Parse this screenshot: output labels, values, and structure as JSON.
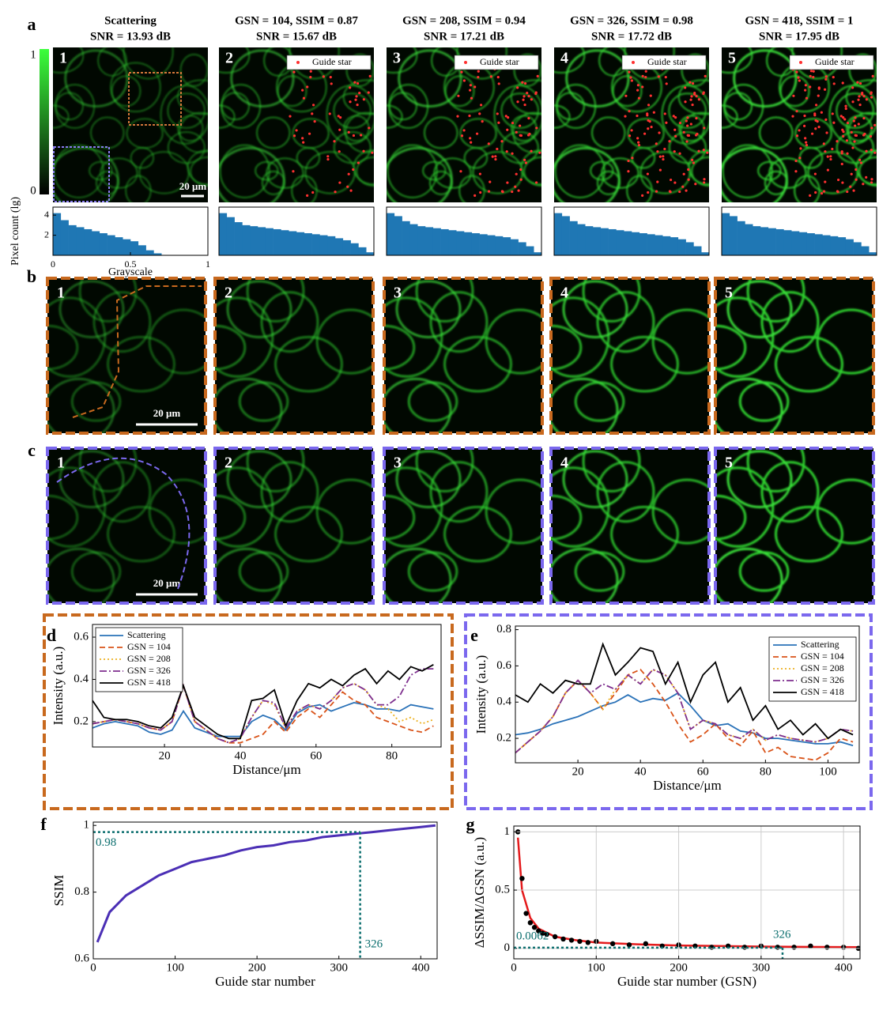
{
  "panel_labels": [
    "a",
    "b",
    "c",
    "d",
    "e",
    "f",
    "g"
  ],
  "panel_a": {
    "titles": [
      [
        "Scattering",
        "SNR = 13.93 dB"
      ],
      [
        "GSN = 104, SSIM = 0.87",
        "SNR = 15.67 dB"
      ],
      [
        "GSN = 208, SSIM = 0.94",
        "SNR = 17.21 dB"
      ],
      [
        "GSN = 326, SSIM = 0.98",
        "SNR = 17.72 dB"
      ],
      [
        "GSN = 418, SSIM = 1",
        "SNR = 17.95 dB"
      ]
    ],
    "image_numbers": [
      "1",
      "2",
      "3",
      "4",
      "5"
    ],
    "colorbar_ticks": [
      1,
      0
    ],
    "scale_bar": "20 μm",
    "legend": "Guide star"
  },
  "panel_b": {
    "image_numbers": [
      "1",
      "2",
      "3",
      "4",
      "5"
    ],
    "scale_bar": "20 μm"
  },
  "panel_c": {
    "image_numbers": [
      "1",
      "2",
      "3",
      "4",
      "5"
    ],
    "scale_bar": "20 μm"
  },
  "chart_data": [
    {
      "type": "histogram",
      "bins": [
        0,
        0.05,
        0.1,
        0.15,
        0.2,
        0.25,
        0.3,
        0.35,
        0.4,
        0.45,
        0.5,
        0.55,
        0.6,
        0.65,
        0.7,
        0.75,
        0.8,
        0.85,
        0.9,
        0.95,
        1
      ],
      "values": [
        4.2,
        3.5,
        3,
        2.8,
        2.6,
        2.4,
        2.2,
        2,
        1.8,
        1.6,
        1.4,
        1,
        0.5,
        0.2,
        0,
        0,
        0,
        0,
        0,
        0
      ],
      "color": "#1f77b4",
      "xlim": [
        0,
        1
      ],
      "ylim": [
        0,
        4.8
      ],
      "xticks": [
        0,
        0.5,
        1
      ],
      "yticks": [
        2,
        4
      ],
      "x_label": "Grayscale",
      "y_label": "Pixel count (lg)"
    },
    {
      "type": "histogram",
      "bins": [
        0,
        0.05,
        0.1,
        0.15,
        0.2,
        0.25,
        0.3,
        0.35,
        0.4,
        0.45,
        0.5,
        0.55,
        0.6,
        0.65,
        0.7,
        0.75,
        0.8,
        0.85,
        0.9,
        0.95,
        1
      ],
      "values": [
        4.2,
        3.8,
        3.3,
        3,
        2.9,
        2.8,
        2.7,
        2.6,
        2.5,
        2.4,
        2.3,
        2.2,
        2.1,
        2,
        1.9,
        1.7,
        1.5,
        1.2,
        0.8,
        0.3
      ],
      "color": "#1f77b4",
      "xlim": [
        0,
        1
      ],
      "ylim": [
        0,
        4.8
      ]
    },
    {
      "type": "histogram",
      "bins": [
        0,
        0.05,
        0.1,
        0.15,
        0.2,
        0.25,
        0.3,
        0.35,
        0.4,
        0.45,
        0.5,
        0.55,
        0.6,
        0.65,
        0.7,
        0.75,
        0.8,
        0.85,
        0.9,
        0.95,
        1
      ],
      "values": [
        4.2,
        3.9,
        3.4,
        3.1,
        2.9,
        2.8,
        2.7,
        2.6,
        2.5,
        2.4,
        2.3,
        2.2,
        2.1,
        2,
        1.9,
        1.8,
        1.6,
        1.3,
        0.9,
        0.3
      ],
      "color": "#1f77b4",
      "xlim": [
        0,
        1
      ],
      "ylim": [
        0,
        4.8
      ]
    },
    {
      "type": "histogram",
      "bins": [
        0,
        0.05,
        0.1,
        0.15,
        0.2,
        0.25,
        0.3,
        0.35,
        0.4,
        0.45,
        0.5,
        0.55,
        0.6,
        0.65,
        0.7,
        0.75,
        0.8,
        0.85,
        0.9,
        0.95,
        1
      ],
      "values": [
        4.2,
        3.9,
        3.4,
        3.1,
        2.9,
        2.8,
        2.7,
        2.6,
        2.5,
        2.4,
        2.3,
        2.2,
        2.1,
        2,
        1.9,
        1.8,
        1.6,
        1.3,
        0.9,
        0.3
      ],
      "color": "#1f77b4",
      "xlim": [
        0,
        1
      ],
      "ylim": [
        0,
        4.8
      ]
    },
    {
      "type": "histogram",
      "bins": [
        0,
        0.05,
        0.1,
        0.15,
        0.2,
        0.25,
        0.3,
        0.35,
        0.4,
        0.45,
        0.5,
        0.55,
        0.6,
        0.65,
        0.7,
        0.75,
        0.8,
        0.85,
        0.9,
        0.95,
        1
      ],
      "values": [
        4.2,
        3.9,
        3.4,
        3.1,
        2.9,
        2.8,
        2.7,
        2.6,
        2.5,
        2.4,
        2.3,
        2.2,
        2.1,
        2,
        1.9,
        1.8,
        1.6,
        1.3,
        0.9,
        0.3
      ],
      "color": "#1f77b4",
      "xlim": [
        0,
        1
      ],
      "ylim": [
        0,
        4.8
      ]
    },
    {
      "type": "line",
      "x": [
        1,
        4,
        7,
        10,
        13,
        16,
        19,
        22,
        25,
        28,
        31,
        34,
        37,
        40,
        43,
        46,
        49,
        52,
        55,
        58,
        61,
        64,
        67,
        70,
        73,
        76,
        79,
        82,
        85,
        88,
        91
      ],
      "series": [
        {
          "name": "Scattering",
          "color": "#2a72b8",
          "dash": "solid",
          "values": [
            0.17,
            0.19,
            0.2,
            0.19,
            0.18,
            0.15,
            0.14,
            0.16,
            0.25,
            0.17,
            0.15,
            0.13,
            0.13,
            0.13,
            0.2,
            0.23,
            0.21,
            0.16,
            0.24,
            0.27,
            0.28,
            0.25,
            0.27,
            0.29,
            0.28,
            0.26,
            0.26,
            0.25,
            0.28,
            0.27,
            0.26
          ]
        },
        {
          "name": "GSN = 104",
          "color": "#d95319",
          "dash": "dashed",
          "values": [
            0.19,
            0.2,
            0.21,
            0.2,
            0.19,
            0.17,
            0.16,
            0.2,
            0.37,
            0.2,
            0.16,
            0.12,
            0.1,
            0.1,
            0.12,
            0.14,
            0.2,
            0.15,
            0.22,
            0.26,
            0.22,
            0.28,
            0.34,
            0.3,
            0.28,
            0.22,
            0.2,
            0.18,
            0.16,
            0.15,
            0.18
          ]
        },
        {
          "name": "GSN = 208",
          "color": "#edb120",
          "dash": "dotted",
          "values": [
            0.19,
            0.2,
            0.21,
            0.2,
            0.19,
            0.17,
            0.16,
            0.2,
            0.37,
            0.2,
            0.16,
            0.12,
            0.1,
            0.12,
            0.22,
            0.3,
            0.28,
            0.17,
            0.25,
            0.28,
            0.26,
            0.3,
            0.36,
            0.38,
            0.35,
            0.28,
            0.26,
            0.2,
            0.22,
            0.19,
            0.21
          ]
        },
        {
          "name": "GSN = 326",
          "color": "#7e2f8e",
          "dash": "dashdot",
          "values": [
            0.19,
            0.2,
            0.21,
            0.2,
            0.19,
            0.17,
            0.16,
            0.2,
            0.37,
            0.2,
            0.16,
            0.12,
            0.1,
            0.12,
            0.22,
            0.3,
            0.29,
            0.17,
            0.25,
            0.28,
            0.26,
            0.3,
            0.36,
            0.38,
            0.35,
            0.28,
            0.28,
            0.32,
            0.42,
            0.45,
            0.45
          ]
        },
        {
          "name": "GSN = 418",
          "color": "#000000",
          "dash": "solid",
          "values": [
            0.3,
            0.22,
            0.21,
            0.21,
            0.2,
            0.18,
            0.17,
            0.22,
            0.37,
            0.22,
            0.18,
            0.14,
            0.12,
            0.12,
            0.3,
            0.31,
            0.35,
            0.18,
            0.3,
            0.38,
            0.36,
            0.4,
            0.37,
            0.42,
            0.45,
            0.38,
            0.44,
            0.4,
            0.46,
            0.44,
            0.47
          ]
        }
      ],
      "xlim": [
        1,
        93
      ],
      "ylim": [
        0.08,
        0.66
      ],
      "xticks": [
        20,
        40,
        60,
        80
      ],
      "yticks": [
        0.2,
        0.4,
        0.6
      ],
      "x_label": "Distance/μm",
      "y_label": "Intensity (a.u.)",
      "legend": "upper left"
    },
    {
      "type": "line",
      "x": [
        0,
        4,
        8,
        12,
        16,
        20,
        24,
        28,
        32,
        36,
        40,
        44,
        48,
        52,
        56,
        60,
        64,
        68,
        72,
        76,
        80,
        84,
        88,
        92,
        96,
        100,
        104,
        108
      ],
      "series": [
        {
          "name": "Scattering",
          "color": "#2a72b8",
          "dash": "solid",
          "values": [
            0.22,
            0.23,
            0.25,
            0.28,
            0.3,
            0.32,
            0.35,
            0.38,
            0.4,
            0.44,
            0.4,
            0.42,
            0.41,
            0.45,
            0.38,
            0.3,
            0.27,
            0.28,
            0.24,
            0.23,
            0.2,
            0.2,
            0.19,
            0.18,
            0.17,
            0.17,
            0.18,
            0.16
          ]
        },
        {
          "name": "GSN = 104",
          "color": "#d95319",
          "dash": "dashed",
          "values": [
            0.12,
            0.18,
            0.24,
            0.32,
            0.45,
            0.52,
            0.45,
            0.36,
            0.45,
            0.55,
            0.58,
            0.5,
            0.4,
            0.28,
            0.18,
            0.22,
            0.28,
            0.2,
            0.16,
            0.24,
            0.12,
            0.15,
            0.1,
            0.09,
            0.08,
            0.12,
            0.2,
            0.18
          ]
        },
        {
          "name": "GSN = 208",
          "color": "#edb120",
          "dash": "dotted",
          "values": [
            0.12,
            0.18,
            0.24,
            0.32,
            0.45,
            0.52,
            0.45,
            0.36,
            0.47,
            0.55,
            0.5,
            0.58,
            0.55,
            0.45,
            0.25,
            0.3,
            0.28,
            0.22,
            0.2,
            0.25,
            0.19,
            0.22,
            0.2,
            0.19,
            0.18,
            0.2,
            0.25,
            0.24
          ]
        },
        {
          "name": "GSN = 326",
          "color": "#7e2f8e",
          "dash": "dashdot",
          "values": [
            0.12,
            0.18,
            0.24,
            0.32,
            0.45,
            0.52,
            0.45,
            0.5,
            0.47,
            0.55,
            0.5,
            0.58,
            0.55,
            0.45,
            0.25,
            0.3,
            0.28,
            0.22,
            0.2,
            0.25,
            0.19,
            0.22,
            0.2,
            0.19,
            0.18,
            0.2,
            0.25,
            0.24
          ]
        },
        {
          "name": "GSN = 418",
          "color": "#000000",
          "dash": "solid",
          "values": [
            0.44,
            0.4,
            0.5,
            0.45,
            0.52,
            0.5,
            0.5,
            0.72,
            0.55,
            0.62,
            0.7,
            0.68,
            0.5,
            0.62,
            0.4,
            0.55,
            0.62,
            0.4,
            0.48,
            0.3,
            0.38,
            0.25,
            0.3,
            0.22,
            0.28,
            0.2,
            0.25,
            0.22
          ]
        }
      ],
      "xlim": [
        0,
        110
      ],
      "ylim": [
        0.065,
        0.82
      ],
      "xticks": [
        20,
        40,
        60,
        80,
        100
      ],
      "yticks": [
        0.2,
        0.4,
        0.6,
        0.8
      ],
      "x_label": "Distance/μm",
      "y_label": "Intensity (a.u.)",
      "legend": "upper right"
    },
    {
      "type": "line",
      "x": [
        5,
        20,
        40,
        60,
        80,
        100,
        120,
        140,
        160,
        180,
        200,
        220,
        240,
        260,
        280,
        300,
        320,
        340,
        360,
        380,
        400,
        418
      ],
      "series": [
        {
          "color": "#4b2fb5",
          "dash": "solid",
          "values": [
            0.65,
            0.74,
            0.79,
            0.82,
            0.85,
            0.87,
            0.89,
            0.9,
            0.91,
            0.925,
            0.935,
            0.94,
            0.95,
            0.955,
            0.965,
            0.97,
            0.975,
            0.98,
            0.985,
            0.99,
            0.995,
            1
          ]
        }
      ],
      "xlim": [
        0,
        420
      ],
      "ylim": [
        0.6,
        1.01
      ],
      "xticks": [
        0,
        100,
        200,
        300,
        400
      ],
      "yticks": [
        0.6,
        0.8,
        1
      ],
      "x_label": "Guide star number",
      "y_label": "SSIM",
      "hline": 0.98,
      "vline": 326,
      "ref_color": "#0b6e6e"
    },
    {
      "type": "scatter",
      "x": [
        5,
        10,
        15,
        20,
        25,
        30,
        35,
        40,
        50,
        60,
        70,
        80,
        90,
        100,
        120,
        140,
        160,
        180,
        200,
        220,
        240,
        260,
        280,
        300,
        320,
        340,
        360,
        380,
        400,
        418
      ],
      "values": [
        1,
        0.6,
        0.3,
        0.22,
        0.18,
        0.15,
        0.13,
        0.12,
        0.1,
        0.08,
        0.07,
        0.06,
        0.05,
        0.06,
        0.04,
        0.03,
        0.04,
        0.02,
        0.03,
        0.02,
        0.01,
        0.02,
        0.01,
        0.02,
        0.01,
        0.01,
        0.02,
        0.01,
        0.01,
        0
      ],
      "color": "#000000",
      "fit": {
        "x": [
          5,
          10,
          20,
          30,
          50,
          75,
          100,
          150,
          200,
          300,
          418
        ],
        "values": [
          0.95,
          0.5,
          0.26,
          0.17,
          0.1,
          0.07,
          0.05,
          0.035,
          0.025,
          0.015,
          0.01
        ],
        "color": "#e41a1c"
      },
      "xlim": [
        0,
        420
      ],
      "ylim": [
        -0.09,
        1.05
      ],
      "xticks": [
        0,
        100,
        200,
        300,
        400
      ],
      "yticks": [
        0,
        0.5,
        1
      ],
      "grid": true,
      "x_label": "Guide star number (GSN)",
      "y_label": "ΔSSIM/ΔGSN (a.u.)",
      "hline": 0.0062,
      "vline": 326,
      "ref_color": "#0b6e6e"
    }
  ]
}
